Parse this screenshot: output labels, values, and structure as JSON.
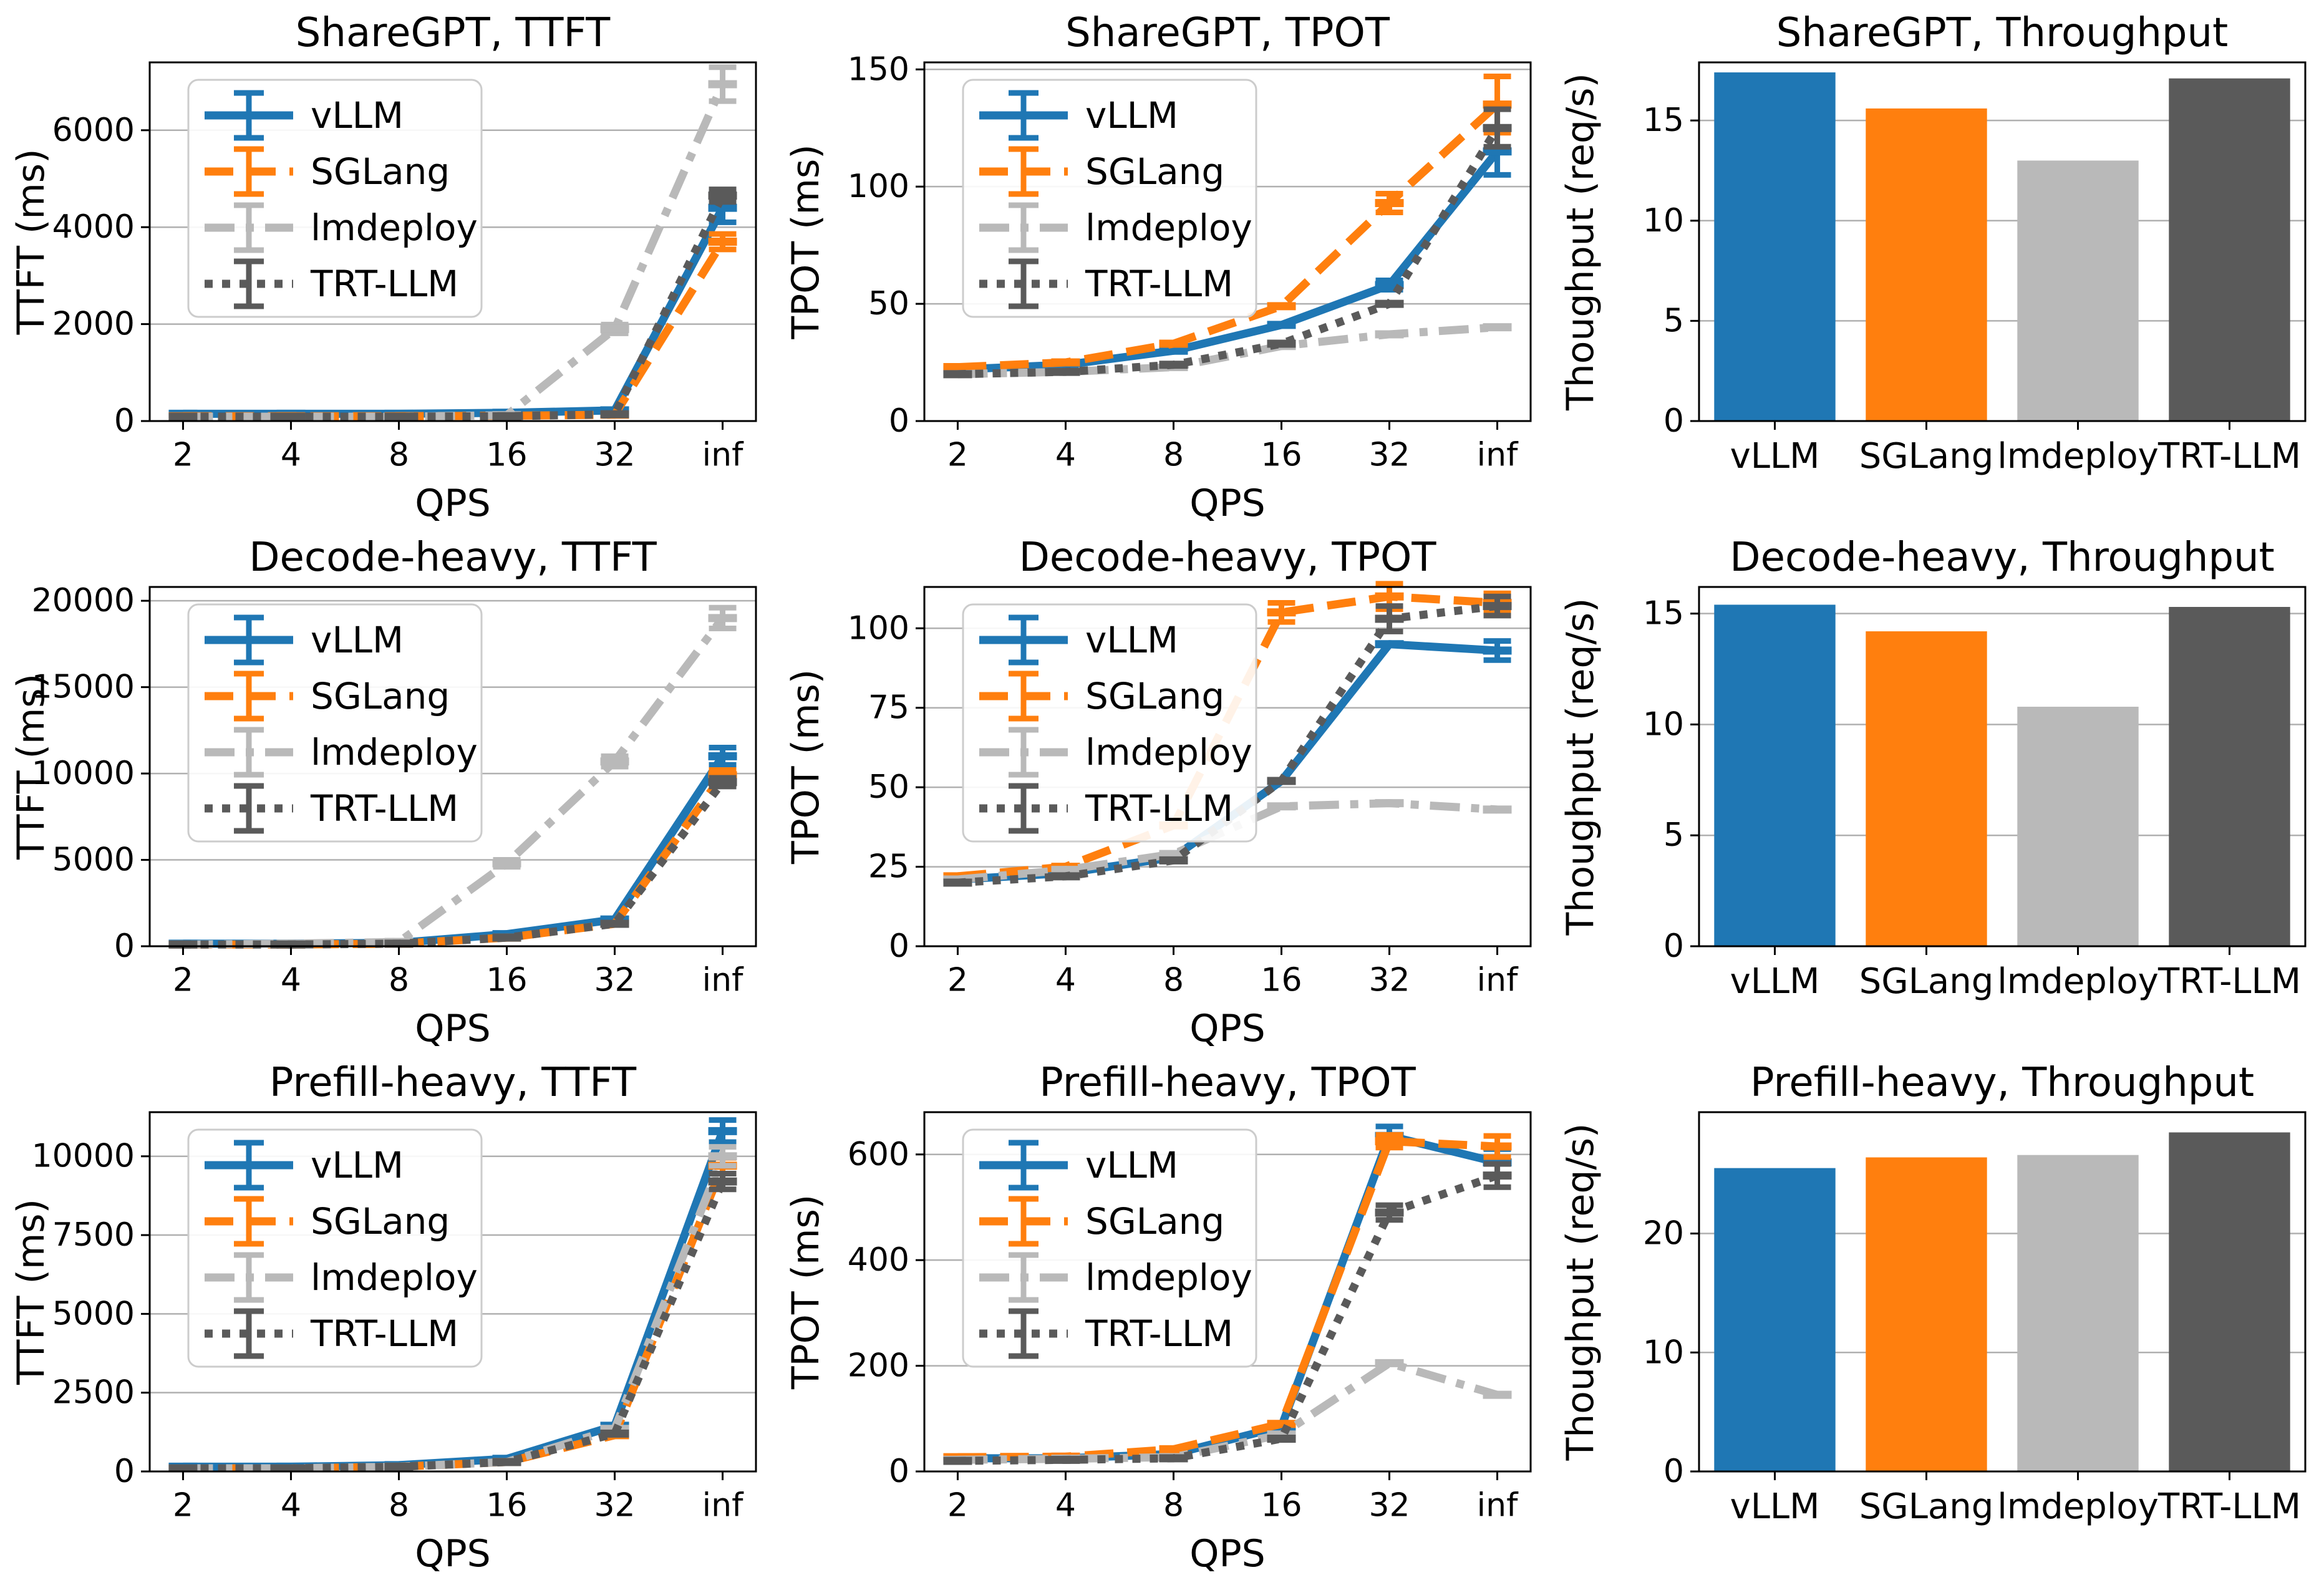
{
  "figure": {
    "background": "#ffffff",
    "grid_color": "#b0b0b0",
    "spine_color": "#000000"
  },
  "chart_data": [
    {
      "id": "sharegpt-ttft",
      "type": "line",
      "title": "ShareGPT, TTFT",
      "xlabel": "QPS",
      "ylabel": "TTFT (ms)",
      "x": [
        "2",
        "4",
        "8",
        "16",
        "32",
        "inf"
      ],
      "ylim": [
        0,
        7400
      ],
      "yticks": [
        0,
        2000,
        4000,
        6000
      ],
      "grid": "horizontal",
      "legend_position": "upper-left",
      "series": [
        {
          "name": "vLLM",
          "color": "#1f77b4",
          "style": "solid",
          "values": [
            150,
            150,
            150,
            170,
            220,
            4400
          ],
          "err": [
            0,
            0,
            0,
            0,
            0,
            300
          ]
        },
        {
          "name": "SGLang",
          "color": "#ff7f0e",
          "style": "dashed",
          "values": [
            100,
            100,
            100,
            110,
            130,
            3700
          ],
          "err": [
            0,
            0,
            0,
            0,
            0,
            160
          ]
        },
        {
          "name": "lmdeploy",
          "color": "#b9b9b9",
          "style": "dashdot",
          "values": [
            90,
            90,
            90,
            120,
            1900,
            6950
          ],
          "err": [
            0,
            0,
            0,
            0,
            90,
            350
          ]
        },
        {
          "name": "TRT-LLM",
          "color": "#5a5a5a",
          "style": "dotted",
          "values": [
            90,
            90,
            90,
            100,
            140,
            4650
          ],
          "err": [
            0,
            0,
            0,
            0,
            0,
            130
          ]
        }
      ]
    },
    {
      "id": "sharegpt-tpot",
      "type": "line",
      "title": "ShareGPT, TPOT",
      "xlabel": "QPS",
      "ylabel": "TPOT (ms)",
      "x": [
        "2",
        "4",
        "8",
        "16",
        "32",
        "inf"
      ],
      "ylim": [
        0,
        153
      ],
      "yticks": [
        0,
        50,
        100,
        150
      ],
      "grid": "horizontal",
      "legend_position": "upper-left",
      "series": [
        {
          "name": "vLLM",
          "color": "#1f77b4",
          "style": "solid",
          "values": [
            22,
            24,
            30,
            41,
            58,
            115
          ],
          "err": [
            0,
            0,
            0,
            0,
            2,
            10
          ]
        },
        {
          "name": "SGLang",
          "color": "#ff7f0e",
          "style": "dashed",
          "values": [
            23,
            25,
            33,
            49,
            93,
            135
          ],
          "err": [
            0,
            0,
            0,
            0,
            4,
            12
          ]
        },
        {
          "name": "lmdeploy",
          "color": "#b9b9b9",
          "style": "dashdot",
          "values": [
            20,
            21,
            23,
            32,
            37,
            40
          ],
          "err": [
            0,
            0,
            0,
            0,
            0,
            0
          ]
        },
        {
          "name": "TRT-LLM",
          "color": "#5a5a5a",
          "style": "dotted",
          "values": [
            20,
            21,
            24,
            33,
            50,
            125
          ],
          "err": [
            0,
            0,
            0,
            0,
            0,
            8
          ]
        }
      ]
    },
    {
      "id": "sharegpt-throughput",
      "type": "bar",
      "title": "ShareGPT, Throughput",
      "xlabel": "",
      "ylabel": "Thoughput (req/s)",
      "categories": [
        "vLLM",
        "SGLang",
        "lmdeploy",
        "TRT-LLM"
      ],
      "values": [
        17.4,
        15.6,
        13.0,
        17.1
      ],
      "colors": [
        "#1f77b4",
        "#ff7f0e",
        "#b9b9b9",
        "#5a5a5a"
      ],
      "ylim": [
        0,
        17.9
      ],
      "yticks": [
        0,
        5,
        10,
        15
      ],
      "grid": "horizontal"
    },
    {
      "id": "decode-heavy-ttft",
      "type": "line",
      "title": "Decode-heavy, TTFT",
      "xlabel": "QPS",
      "ylabel": "TTFT (ms)",
      "x": [
        "2",
        "4",
        "8",
        "16",
        "32",
        "inf"
      ],
      "ylim": [
        0,
        20800
      ],
      "yticks": [
        0,
        5000,
        10000,
        15000,
        20000
      ],
      "grid": "horizontal",
      "legend_position": "upper-left",
      "series": [
        {
          "name": "vLLM",
          "color": "#1f77b4",
          "style": "solid",
          "values": [
            150,
            150,
            200,
            700,
            1550,
            11000
          ],
          "err": [
            0,
            0,
            0,
            0,
            0,
            500
          ]
        },
        {
          "name": "SGLang",
          "color": "#ff7f0e",
          "style": "dashed",
          "values": [
            100,
            100,
            150,
            500,
            1300,
            9900
          ],
          "err": [
            0,
            0,
            0,
            0,
            0,
            300
          ]
        },
        {
          "name": "lmdeploy",
          "color": "#b9b9b9",
          "style": "dashdot",
          "values": [
            100,
            150,
            250,
            4800,
            10700,
            19000
          ],
          "err": [
            0,
            0,
            0,
            200,
            300,
            600
          ]
        },
        {
          "name": "TRT-LLM",
          "color": "#5a5a5a",
          "style": "dotted",
          "values": [
            100,
            100,
            150,
            500,
            1300,
            9500
          ],
          "err": [
            0,
            0,
            0,
            0,
            0,
            250
          ]
        }
      ]
    },
    {
      "id": "decode-heavy-tpot",
      "type": "line",
      "title": "Decode-heavy, TPOT",
      "xlabel": "QPS",
      "ylabel": "TPOT (ms)",
      "x": [
        "2",
        "4",
        "8",
        "16",
        "32",
        "inf"
      ],
      "ylim": [
        0,
        113
      ],
      "yticks": [
        0,
        25,
        50,
        75,
        100
      ],
      "grid": "horizontal",
      "legend_position": "upper-left",
      "series": [
        {
          "name": "vLLM",
          "color": "#1f77b4",
          "style": "solid",
          "values": [
            21,
            23,
            28,
            52,
            95,
            93
          ],
          "err": [
            0,
            0,
            0,
            0,
            0,
            3
          ]
        },
        {
          "name": "SGLang",
          "color": "#ff7f0e",
          "style": "dashed",
          "values": [
            22,
            25,
            38,
            105,
            110,
            108
          ],
          "err": [
            0,
            0,
            0,
            3,
            4,
            3
          ]
        },
        {
          "name": "lmdeploy",
          "color": "#b9b9b9",
          "style": "dashdot",
          "values": [
            21,
            24,
            29,
            44,
            45,
            43
          ],
          "err": [
            0,
            0,
            0,
            0,
            0,
            0
          ]
        },
        {
          "name": "TRT-LLM",
          "color": "#5a5a5a",
          "style": "dotted",
          "values": [
            20,
            22,
            27,
            52,
            103,
            107
          ],
          "err": [
            0,
            0,
            0,
            0,
            4,
            3
          ]
        }
      ]
    },
    {
      "id": "decode-heavy-throughput",
      "type": "bar",
      "title": "Decode-heavy, Throughput",
      "xlabel": "",
      "ylabel": "Thoughput (req/s)",
      "categories": [
        "vLLM",
        "SGLang",
        "lmdeploy",
        "TRT-LLM"
      ],
      "values": [
        15.4,
        14.2,
        10.8,
        15.3
      ],
      "colors": [
        "#1f77b4",
        "#ff7f0e",
        "#b9b9b9",
        "#5a5a5a"
      ],
      "ylim": [
        0,
        16.2
      ],
      "yticks": [
        0,
        5,
        10,
        15
      ],
      "grid": "horizontal"
    },
    {
      "id": "prefill-heavy-ttft",
      "type": "line",
      "title": "Prefill-heavy, TTFT",
      "xlabel": "QPS",
      "ylabel": "TTFT (ms)",
      "x": [
        "2",
        "4",
        "8",
        "16",
        "32",
        "inf"
      ],
      "ylim": [
        0,
        11400
      ],
      "yticks": [
        0,
        2500,
        5000,
        7500,
        10000
      ],
      "grid": "horizontal",
      "legend_position": "upper-left",
      "series": [
        {
          "name": "vLLM",
          "color": "#1f77b4",
          "style": "solid",
          "values": [
            150,
            150,
            200,
            400,
            1450,
            10800
          ],
          "err": [
            0,
            0,
            0,
            0,
            0,
            350
          ]
        },
        {
          "name": "SGLang",
          "color": "#ff7f0e",
          "style": "dashed",
          "values": [
            100,
            100,
            150,
            300,
            1150,
            9700
          ],
          "err": [
            0,
            0,
            0,
            0,
            0,
            250
          ]
        },
        {
          "name": "lmdeploy",
          "color": "#b9b9b9",
          "style": "dashdot",
          "values": [
            100,
            100,
            150,
            300,
            1350,
            10000
          ],
          "err": [
            0,
            0,
            0,
            0,
            0,
            300
          ]
        },
        {
          "name": "TRT-LLM",
          "color": "#5a5a5a",
          "style": "dotted",
          "values": [
            100,
            100,
            150,
            300,
            1200,
            9200
          ],
          "err": [
            0,
            0,
            0,
            0,
            0,
            250
          ]
        }
      ]
    },
    {
      "id": "prefill-heavy-tpot",
      "type": "line",
      "title": "Prefill-heavy, TPOT",
      "xlabel": "QPS",
      "ylabel": "TPOT (ms)",
      "x": [
        "2",
        "4",
        "8",
        "16",
        "32",
        "inf"
      ],
      "ylim": [
        0,
        680
      ],
      "yticks": [
        0,
        200,
        400,
        600
      ],
      "grid": "horizontal",
      "legend_position": "upper-left",
      "series": [
        {
          "name": "vLLM",
          "color": "#1f77b4",
          "style": "solid",
          "values": [
            25,
            25,
            33,
            85,
            635,
            585
          ],
          "err": [
            0,
            0,
            0,
            0,
            18,
            25
          ]
        },
        {
          "name": "SGLang",
          "color": "#ff7f0e",
          "style": "dashed",
          "values": [
            27,
            28,
            42,
            90,
            625,
            615
          ],
          "err": [
            0,
            0,
            0,
            0,
            12,
            20
          ]
        },
        {
          "name": "lmdeploy",
          "color": "#b9b9b9",
          "style": "dashdot",
          "values": [
            22,
            24,
            27,
            70,
            205,
            145
          ],
          "err": [
            0,
            0,
            0,
            0,
            0,
            0
          ]
        },
        {
          "name": "TRT-LLM",
          "color": "#5a5a5a",
          "style": "dotted",
          "values": [
            20,
            22,
            25,
            62,
            490,
            560
          ],
          "err": [
            0,
            0,
            0,
            0,
            14,
            22
          ]
        }
      ]
    },
    {
      "id": "prefill-heavy-throughput",
      "type": "bar",
      "title": "Prefill-heavy, Throughput",
      "xlabel": "",
      "ylabel": "Thoughput (req/s)",
      "categories": [
        "vLLM",
        "SGLang",
        "lmdeploy",
        "TRT-LLM"
      ],
      "values": [
        25.5,
        26.4,
        26.6,
        28.5
      ],
      "colors": [
        "#1f77b4",
        "#ff7f0e",
        "#b9b9b9",
        "#5a5a5a"
      ],
      "ylim": [
        0,
        30.2
      ],
      "yticks": [
        0,
        10,
        20
      ],
      "grid": "horizontal"
    }
  ]
}
